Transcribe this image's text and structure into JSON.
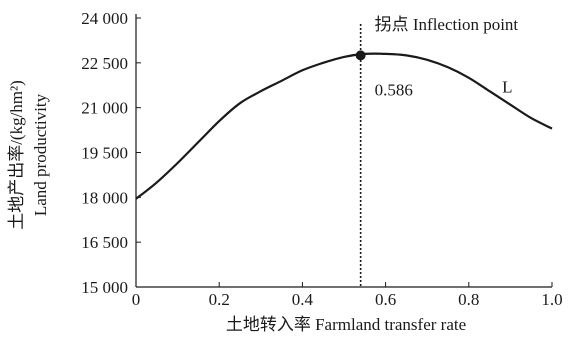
{
  "chart_data": {
    "type": "line",
    "xlabel": "土地转入率 Farmland transfer rate",
    "ylabel_line1": "土地产出率/(kg/hm²)",
    "ylabel_line2": "Land productivity",
    "xlim": [
      0,
      1.0
    ],
    "ylim": [
      15000,
      24000
    ],
    "x_ticks": [
      0,
      0.2,
      0.4,
      0.6,
      0.8,
      1.0
    ],
    "x_tick_labels": [
      "0",
      "0.2",
      "0.4",
      "0.6",
      "0.8",
      "1.0"
    ],
    "y_ticks": [
      15000,
      16500,
      18000,
      19500,
      21000,
      22500,
      24000
    ],
    "y_tick_labels": [
      "15 000",
      "16 500",
      "18 000",
      "19 500",
      "21 000",
      "22 500",
      "24 000"
    ],
    "grid": false,
    "series": [
      {
        "name": "L",
        "x": [
          0,
          0.05,
          0.1,
          0.15,
          0.2,
          0.25,
          0.3,
          0.35,
          0.4,
          0.45,
          0.5,
          0.55,
          0.6,
          0.65,
          0.7,
          0.75,
          0.8,
          0.85,
          0.9,
          0.95,
          1.0
        ],
        "y": [
          17950,
          18500,
          19150,
          19850,
          20550,
          21150,
          21550,
          21900,
          22250,
          22500,
          22700,
          22800,
          22800,
          22750,
          22600,
          22350,
          22000,
          21550,
          21100,
          20650,
          20300
        ]
      }
    ],
    "inflection": {
      "x": 0.54,
      "y": 22750,
      "label": "拐点 Inflection point",
      "value_label": "0.586"
    },
    "series_label": "L",
    "series_label_pos": [
      0.88,
      20700
    ]
  }
}
